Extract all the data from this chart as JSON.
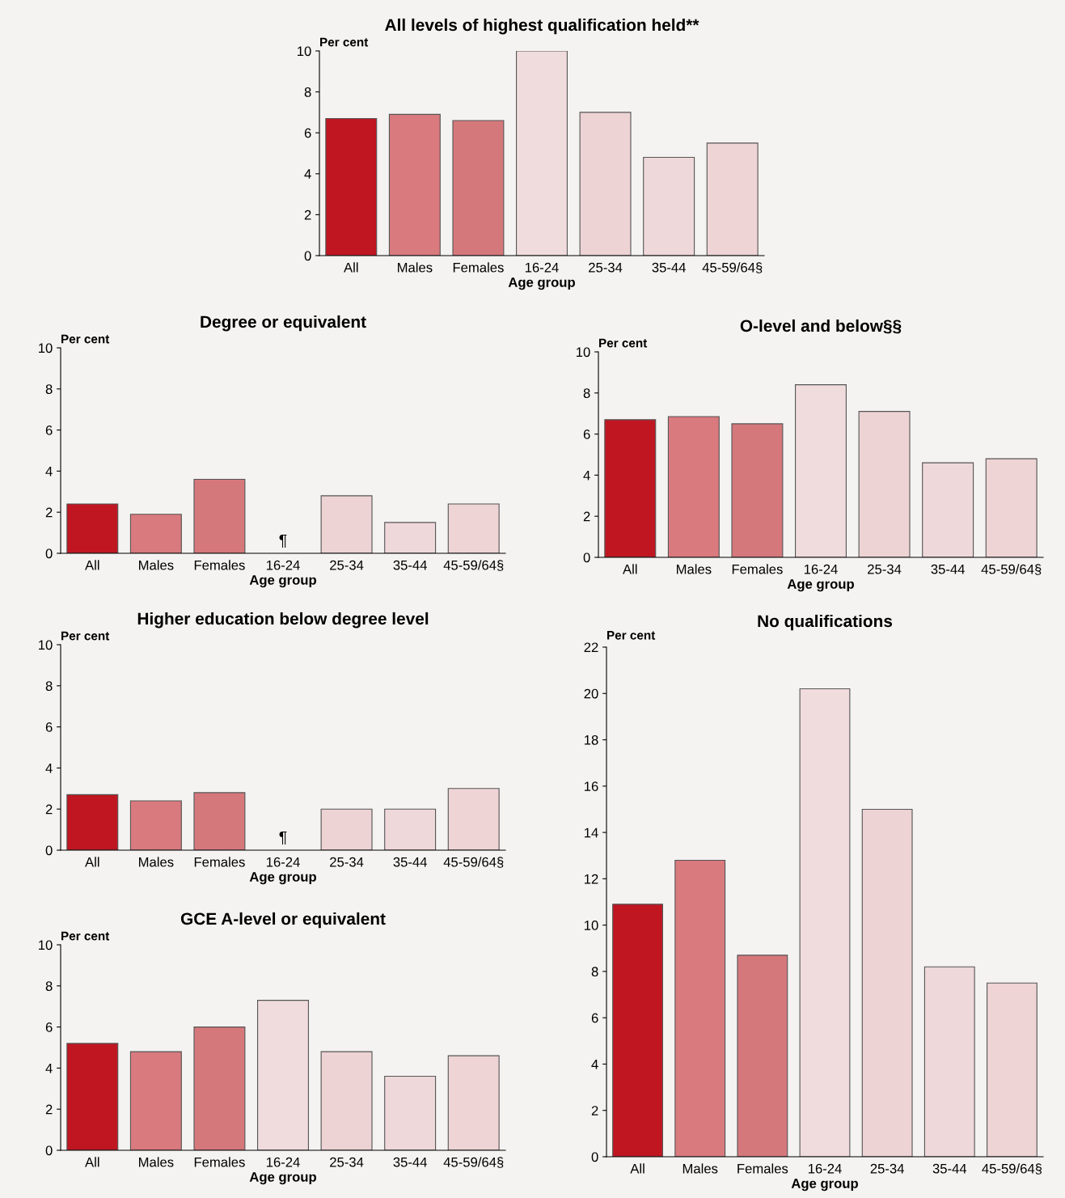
{
  "chart_data": [
    {
      "type": "bar",
      "title": "All levels of highest qualification held**",
      "ylabel": "Per cent",
      "xlabel": "Age group",
      "categories": [
        "All",
        "Males",
        "Females",
        "16-24",
        "25-34",
        "35-44",
        "45-59/64§"
      ],
      "values": [
        6.7,
        6.9,
        6.6,
        10.0,
        7.0,
        4.8,
        5.5
      ],
      "colors": [
        "#bf1622",
        "#d97a7e",
        "#d5787c",
        "#f1dcdd",
        "#edd3d4",
        "#efd8da",
        "#eed4d5"
      ],
      "ylim": [
        0,
        10
      ],
      "yticks": [
        0,
        2,
        4,
        6,
        8,
        10
      ],
      "grid": false,
      "legend": false
    },
    {
      "type": "bar",
      "title": "Degree or equivalent",
      "ylabel": "Per cent",
      "xlabel": "Age group",
      "categories": [
        "All",
        "Males",
        "Females",
        "16-24",
        "25-34",
        "35-44",
        "45-59/64§"
      ],
      "values": [
        2.4,
        1.9,
        3.6,
        null,
        2.8,
        1.5,
        2.4
      ],
      "colors": [
        "#bf1622",
        "#d97a7e",
        "#d5787c",
        "#f1dcdd",
        "#edd3d4",
        "#efd8da",
        "#eed4d5"
      ],
      "ylim": [
        0,
        10
      ],
      "yticks": [
        0,
        2,
        4,
        6,
        8,
        10
      ],
      "grid": false,
      "legend": false,
      "annotations": [
        "¶"
      ]
    },
    {
      "type": "bar",
      "title": "O-level and below§§",
      "ylabel": "Per cent",
      "xlabel": "Age group",
      "categories": [
        "All",
        "Males",
        "Females",
        "16-24",
        "25-34",
        "35-44",
        "45-59/64§"
      ],
      "values": [
        6.7,
        6.85,
        6.5,
        8.4,
        7.1,
        4.6,
        4.8
      ],
      "colors": [
        "#bf1622",
        "#d97a7e",
        "#d5787c",
        "#f1dcdd",
        "#edd3d4",
        "#efd8da",
        "#eed4d5"
      ],
      "ylim": [
        0,
        10
      ],
      "yticks": [
        0,
        2,
        4,
        6,
        8,
        10
      ],
      "grid": false,
      "legend": false
    },
    {
      "type": "bar",
      "title": "Higher education below degree level",
      "ylabel": "Per cent",
      "xlabel": "Age group",
      "categories": [
        "All",
        "Males",
        "Females",
        "16-24",
        "25-34",
        "35-44",
        "45-59/64§"
      ],
      "values": [
        2.7,
        2.4,
        2.8,
        null,
        2.0,
        2.0,
        3.0
      ],
      "colors": [
        "#bf1622",
        "#d97a7e",
        "#d5787c",
        "#f1dcdd",
        "#edd3d4",
        "#efd8da",
        "#eed4d5"
      ],
      "ylim": [
        0,
        10
      ],
      "yticks": [
        0,
        2,
        4,
        6,
        8,
        10
      ],
      "grid": false,
      "legend": false,
      "annotations": [
        "¶"
      ]
    },
    {
      "type": "bar",
      "title": "GCE A-level or equivalent",
      "ylabel": "Per cent",
      "xlabel": "Age group",
      "categories": [
        "All",
        "Males",
        "Females",
        "16-24",
        "25-34",
        "35-44",
        "45-59/64§"
      ],
      "values": [
        5.2,
        4.8,
        6.0,
        7.3,
        4.8,
        3.6,
        4.6
      ],
      "colors": [
        "#bf1622",
        "#d97a7e",
        "#d5787c",
        "#f1dcdd",
        "#edd3d4",
        "#efd8da",
        "#eed4d5"
      ],
      "ylim": [
        0,
        10
      ],
      "yticks": [
        0,
        2,
        4,
        6,
        8,
        10
      ],
      "grid": false,
      "legend": false
    },
    {
      "type": "bar",
      "title": "No qualifications",
      "ylabel": "Per cent",
      "xlabel": "Age group",
      "categories": [
        "All",
        "Males",
        "Females",
        "16-24",
        "25-34",
        "35-44",
        "45-59/64§"
      ],
      "values": [
        10.9,
        12.8,
        8.7,
        20.2,
        15.0,
        8.2,
        7.5
      ],
      "colors": [
        "#bf1622",
        "#d97a7e",
        "#d5787c",
        "#f1dcdd",
        "#edd3d4",
        "#efd8da",
        "#eed4d5"
      ],
      "ylim": [
        0,
        22
      ],
      "yticks": [
        0,
        2,
        4,
        6,
        8,
        10,
        12,
        14,
        16,
        18,
        20,
        22
      ],
      "grid": false,
      "legend": false
    }
  ]
}
